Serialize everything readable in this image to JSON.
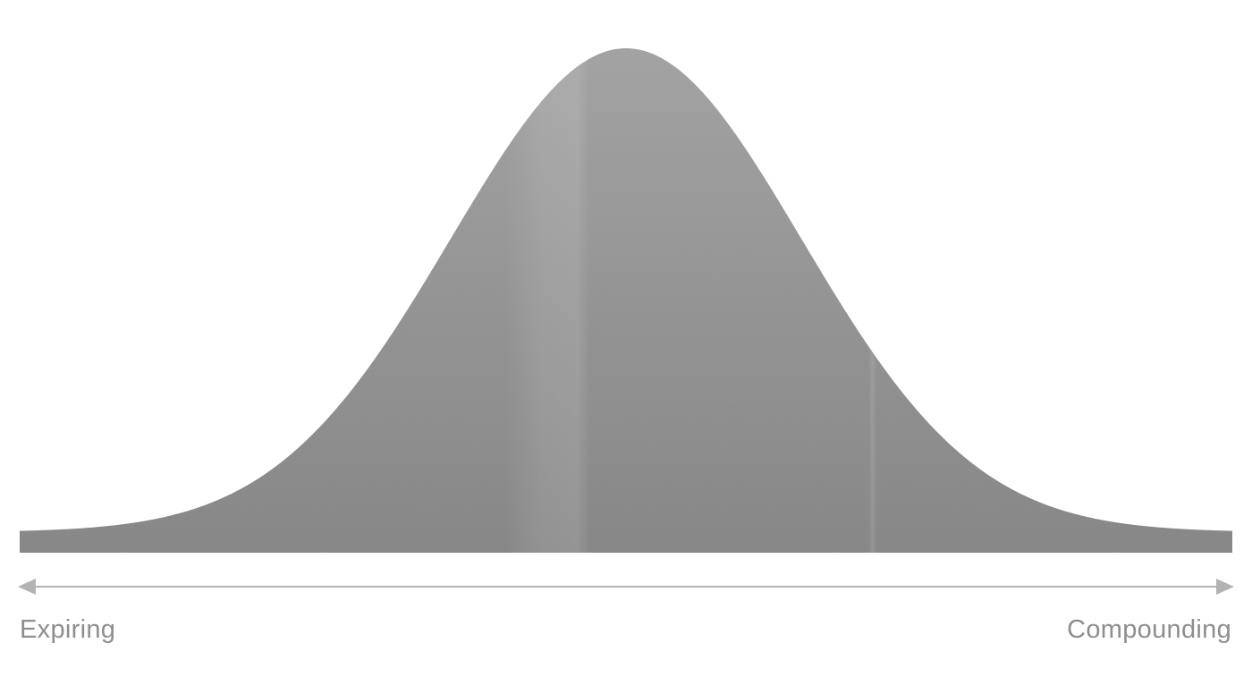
{
  "diagram": {
    "left_label": "Expiring",
    "right_label": "Compounding",
    "colors": {
      "curve_fill": "#8d8d8d",
      "curve_light_band": "#a3a3a3",
      "axis": "#b3b3b3",
      "label_text": "#8e8e8e",
      "background": "#ffffff"
    }
  }
}
